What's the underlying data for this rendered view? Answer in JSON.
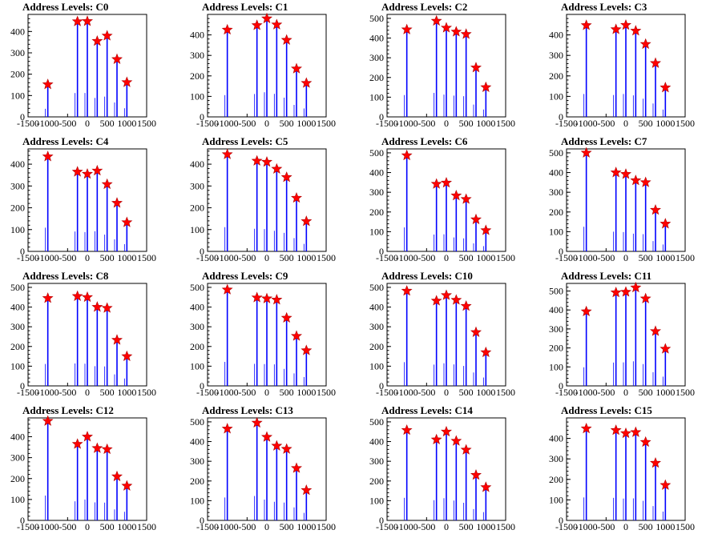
{
  "chart_data": [
    {
      "type": "bar",
      "title": "Address Levels: C0",
      "xlim": [
        -1500,
        1500
      ],
      "ylim": [
        0,
        480
      ],
      "yticks": [
        0,
        100,
        200,
        300,
        400
      ],
      "x": [
        -1000,
        -250,
        0,
        250,
        500,
        750,
        1000
      ],
      "values": [
        152,
        447,
        448,
        355,
        380,
        270,
        162
      ]
    },
    {
      "type": "bar",
      "title": "Address Levels: C1",
      "xlim": [
        -1500,
        1500
      ],
      "ylim": [
        0,
        500
      ],
      "yticks": [
        0,
        100,
        200,
        300,
        400
      ],
      "x": [
        -1000,
        -250,
        0,
        250,
        500,
        750,
        1000
      ],
      "values": [
        425,
        447,
        480,
        450,
        375,
        235,
        165
      ]
    },
    {
      "type": "bar",
      "title": "Address Levels: C2",
      "xlim": [
        -1500,
        1500
      ],
      "ylim": [
        0,
        520
      ],
      "yticks": [
        0,
        100,
        200,
        300,
        400,
        500
      ],
      "x": [
        -1000,
        -250,
        0,
        250,
        500,
        750,
        1000
      ],
      "values": [
        443,
        487,
        452,
        432,
        420,
        250,
        150
      ]
    },
    {
      "type": "bar",
      "title": "Address Levels: C3",
      "xlim": [
        -1500,
        1500
      ],
      "ylim": [
        0,
        500
      ],
      "yticks": [
        0,
        100,
        200,
        300,
        400
      ],
      "x": [
        -1000,
        -250,
        0,
        250,
        500,
        750,
        1000
      ],
      "values": [
        447,
        427,
        448,
        420,
        355,
        262,
        143
      ]
    },
    {
      "type": "bar",
      "title": "Address Levels: C4",
      "xlim": [
        -1500,
        1500
      ],
      "ylim": [
        0,
        470
      ],
      "yticks": [
        0,
        100,
        200,
        300,
        400
      ],
      "x": [
        -1000,
        -250,
        0,
        250,
        500,
        750,
        1000
      ],
      "values": [
        435,
        365,
        355,
        370,
        308,
        222,
        133
      ]
    },
    {
      "type": "bar",
      "title": "Address Levels: C5",
      "xlim": [
        -1500,
        1500
      ],
      "ylim": [
        0,
        470
      ],
      "yticks": [
        0,
        100,
        200,
        300,
        400
      ],
      "x": [
        -1000,
        -250,
        0,
        250,
        500,
        750,
        1000
      ],
      "values": [
        445,
        415,
        410,
        378,
        340,
        245,
        138
      ]
    },
    {
      "type": "bar",
      "title": "Address Levels: C6",
      "xlim": [
        -1500,
        1500
      ],
      "ylim": [
        0,
        520
      ],
      "yticks": [
        0,
        100,
        200,
        300,
        400,
        500
      ],
      "x": [
        -1000,
        -250,
        0,
        250,
        500,
        750,
        1000
      ],
      "values": [
        487,
        342,
        348,
        283,
        265,
        162,
        107
      ]
    },
    {
      "type": "bar",
      "title": "Address Levels: C7",
      "xlim": [
        -1500,
        1500
      ],
      "ylim": [
        0,
        520
      ],
      "yticks": [
        0,
        100,
        200,
        300,
        400,
        500
      ],
      "x": [
        -1000,
        -250,
        0,
        250,
        500,
        750,
        1000
      ],
      "values": [
        500,
        400,
        392,
        360,
        350,
        210,
        140
      ]
    },
    {
      "type": "bar",
      "title": "Address Levels: C8",
      "xlim": [
        -1500,
        1500
      ],
      "ylim": [
        0,
        520
      ],
      "yticks": [
        0,
        100,
        200,
        300,
        400,
        500
      ],
      "x": [
        -1000,
        -250,
        0,
        250,
        500,
        750,
        1000
      ],
      "values": [
        445,
        455,
        450,
        400,
        395,
        233,
        150
      ]
    },
    {
      "type": "bar",
      "title": "Address Levels: C9",
      "xlim": [
        -1500,
        1500
      ],
      "ylim": [
        0,
        520
      ],
      "yticks": [
        0,
        100,
        200,
        300,
        400,
        500
      ],
      "x": [
        -1000,
        -250,
        0,
        250,
        500,
        750,
        1000
      ],
      "values": [
        488,
        448,
        443,
        437,
        345,
        253,
        180
      ]
    },
    {
      "type": "bar",
      "title": "Address Levels: C10",
      "xlim": [
        -1500,
        1500
      ],
      "ylim": [
        0,
        520
      ],
      "yticks": [
        0,
        100,
        200,
        300,
        400,
        500
      ],
      "x": [
        -1000,
        -250,
        0,
        250,
        500,
        750,
        1000
      ],
      "values": [
        482,
        432,
        460,
        436,
        405,
        272,
        170
      ]
    },
    {
      "type": "bar",
      "title": "Address Levels: C11",
      "xlim": [
        -1500,
        1500
      ],
      "ylim": [
        0,
        540
      ],
      "yticks": [
        0,
        100,
        200,
        300,
        400,
        500
      ],
      "x": [
        -1000,
        -250,
        0,
        250,
        500,
        750,
        1000
      ],
      "values": [
        392,
        492,
        495,
        518,
        460,
        288,
        195
      ]
    },
    {
      "type": "bar",
      "title": "Address Levels: C12",
      "xlim": [
        -1500,
        1500
      ],
      "ylim": [
        0,
        490
      ],
      "yticks": [
        0,
        100,
        200,
        300,
        400
      ],
      "x": [
        -1000,
        -250,
        0,
        250,
        500,
        750,
        1000
      ],
      "values": [
        475,
        365,
        400,
        345,
        340,
        210,
        165
      ]
    },
    {
      "type": "bar",
      "title": "Address Levels: C13",
      "xlim": [
        -1500,
        1500
      ],
      "ylim": [
        0,
        520
      ],
      "yticks": [
        0,
        100,
        200,
        300,
        400,
        500
      ],
      "x": [
        -1000,
        -250,
        0,
        250,
        500,
        750,
        1000
      ],
      "values": [
        465,
        495,
        423,
        378,
        362,
        265,
        153
      ]
    },
    {
      "type": "bar",
      "title": "Address Levels: C14",
      "xlim": [
        -1500,
        1500
      ],
      "ylim": [
        0,
        520
      ],
      "yticks": [
        0,
        100,
        200,
        300,
        400,
        500
      ],
      "x": [
        -1000,
        -250,
        0,
        250,
        500,
        750,
        1000
      ],
      "values": [
        458,
        410,
        450,
        403,
        358,
        230,
        168
      ]
    },
    {
      "type": "bar",
      "title": "Address Levels: C15",
      "xlim": [
        -1500,
        1500
      ],
      "ylim": [
        0,
        500
      ],
      "yticks": [
        0,
        100,
        200,
        300,
        400
      ],
      "x": [
        -1000,
        -250,
        0,
        250,
        500,
        750,
        1000
      ],
      "values": [
        448,
        440,
        425,
        430,
        382,
        280,
        172
      ]
    }
  ],
  "x_tick_values": [
    -1500,
    -1000,
    -500,
    0,
    500,
    1000,
    1500
  ],
  "colors": {
    "bar": "#0000ff",
    "marker": "#ff0000",
    "axis": "#000000"
  }
}
